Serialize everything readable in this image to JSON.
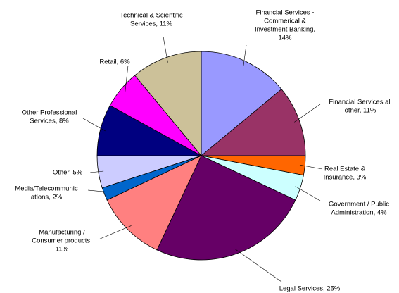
{
  "chart_data": {
    "type": "pie",
    "labels": [
      [
        "Financial Services -",
        "Commerical &",
        "Investment Banking,",
        "14%"
      ],
      [
        "Financial Services all",
        "other, 11%"
      ],
      [
        "Real Estate &",
        "Insurance, 3%"
      ],
      [
        "Government / Public",
        "Administration, 4%"
      ],
      [
        "Legal Services, 25%"
      ],
      [
        "Manufacturing /",
        "Consumer products,",
        "11%"
      ],
      [
        "Media/Telecommunic",
        "ations, 2%"
      ],
      [
        "Other, 5%"
      ],
      [
        "Other Professional",
        "Services, 8%"
      ],
      [
        "Retail, 6%"
      ],
      [
        "Technical & Scientific",
        "Services, 11%"
      ]
    ],
    "values": [
      14,
      11,
      3,
      4,
      25,
      11,
      2,
      5,
      8,
      6,
      11
    ],
    "colors": [
      "#9999ff",
      "#993366",
      "#ff6600",
      "#ccffff",
      "#660066",
      "#ff8080",
      "#0066cc",
      "#ccccff",
      "#000080",
      "#ff00ff",
      "#ccc199"
    ]
  }
}
